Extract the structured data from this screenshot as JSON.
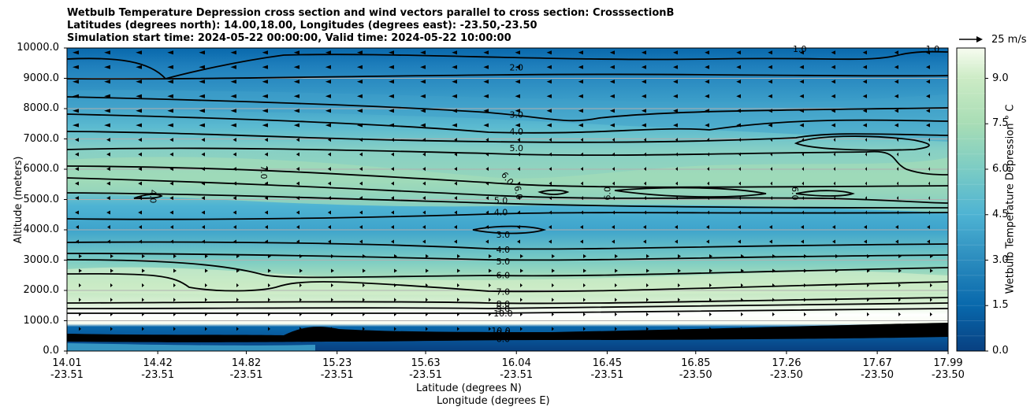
{
  "chart_data": {
    "type": "contour",
    "title_lines": [
      "Wetbulb Temperature Depression cross section and wind vectors parallel to cross section: CrosssectionB",
      "Latitudes (degrees north): 14.00,18.00, Longitudes (degrees east): -23.50,-23.50",
      "Simulation start time: 2024-05-22 00:00:00, Valid time: 2024-05-22 10:00:00"
    ],
    "ylabel": "Altitude (meters)",
    "xlabel_lines": [
      "Latitude (degrees N)",
      "Longitude (degrees E)"
    ],
    "ylim": [
      0,
      10000
    ],
    "yticks": [
      "0.0",
      "1000.0",
      "2000.0",
      "3000.0",
      "4000.0",
      "5000.0",
      "6000.0",
      "7000.0",
      "8000.0",
      "9000.0",
      "10000.0"
    ],
    "xticks": [
      {
        "lat": "14.01",
        "lon": "-23.51"
      },
      {
        "lat": "14.42",
        "lon": "-23.51"
      },
      {
        "lat": "14.82",
        "lon": "-23.51"
      },
      {
        "lat": "15.23",
        "lon": "-23.51"
      },
      {
        "lat": "15.63",
        "lon": "-23.51"
      },
      {
        "lat": "16.04",
        "lon": "-23.51"
      },
      {
        "lat": "16.45",
        "lon": "-23.51"
      },
      {
        "lat": "16.85",
        "lon": "-23.50"
      },
      {
        "lat": "17.26",
        "lon": "-23.50"
      },
      {
        "lat": "17.67",
        "lon": "-23.50"
      },
      {
        "lat": "17.99",
        "lon": "-23.50"
      }
    ],
    "grid": "horizontal",
    "colorbar": {
      "label": "Wetbulb Temperature Depression ° C",
      "ticks": [
        "0.0",
        "1.5",
        "3.0",
        "4.5",
        "6.0",
        "7.5",
        "9.0"
      ],
      "range": [
        0,
        10
      ],
      "colormap": [
        "#08589e",
        "#2b8cbe",
        "#4eb3d3",
        "#7bccc4",
        "#a8ddb5",
        "#ccebc5",
        "#f7fcf0"
      ]
    },
    "wind_key": {
      "label": "25 m/s"
    },
    "contour_labels": [
      {
        "text": "2.0",
        "x": 16.04,
        "y": 9370
      },
      {
        "text": "3.0",
        "x": 16.04,
        "y": 7800
      },
      {
        "text": "4.0",
        "x": 16.04,
        "y": 7250
      },
      {
        "text": "5.0",
        "x": 16.04,
        "y": 6700
      },
      {
        "text": "6.0",
        "x": 16.0,
        "y": 5700,
        "angle": 50
      },
      {
        "text": "6.0",
        "x": 16.05,
        "y": 5230,
        "angle": 80
      },
      {
        "text": "6.0",
        "x": 16.45,
        "y": 5200,
        "angle": -90
      },
      {
        "text": "6.0",
        "x": 17.3,
        "y": 5200,
        "angle": 90
      },
      {
        "text": "7.0",
        "x": 14.9,
        "y": 5900,
        "angle": 90
      },
      {
        "text": "4.0",
        "x": 14.4,
        "y": 5100,
        "angle": 90
      },
      {
        "text": "5.0",
        "x": 15.97,
        "y": 4970
      },
      {
        "text": "4.0",
        "x": 15.97,
        "y": 4590
      },
      {
        "text": "3.0",
        "x": 15.98,
        "y": 3840
      },
      {
        "text": "4.0",
        "x": 15.98,
        "y": 3350
      },
      {
        "text": "5.0",
        "x": 15.98,
        "y": 2960
      },
      {
        "text": "6.0",
        "x": 15.98,
        "y": 2510
      },
      {
        "text": "7.0",
        "x": 15.98,
        "y": 1960
      },
      {
        "text": "8.0",
        "x": 15.98,
        "y": 1560
      },
      {
        "text": "9.0",
        "x": 15.98,
        "y": 1400
      },
      {
        "text": "10.0",
        "x": 15.98,
        "y": 1250
      },
      {
        "text": "10.0",
        "x": 15.97,
        "y": 670
      },
      {
        "text": "9.0",
        "x": 15.98,
        "y": 600
      },
      {
        "text": "6.0",
        "x": 15.98,
        "y": 400
      },
      {
        "text": "1.0",
        "x": 17.92,
        "y": 9970
      },
      {
        "text": "1.0",
        "x": 17.32,
        "y": 9970
      }
    ]
  }
}
